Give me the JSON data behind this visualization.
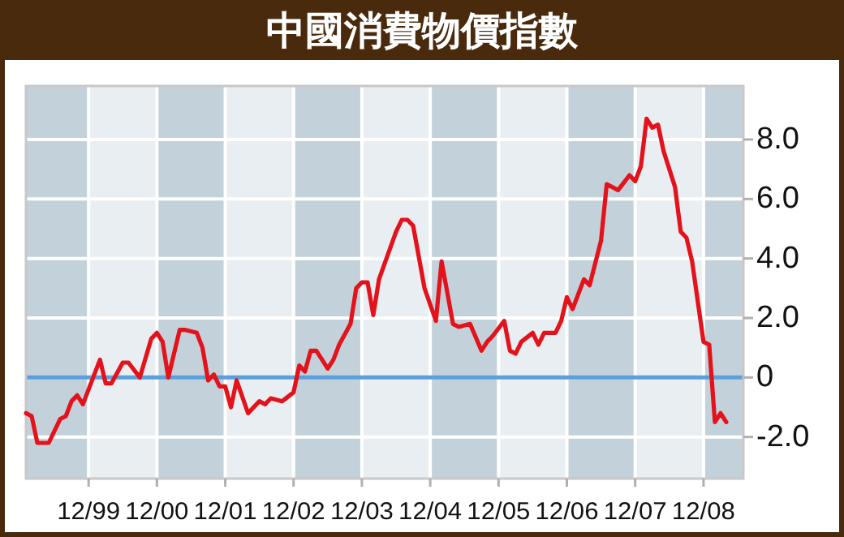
{
  "chart_data": {
    "type": "line",
    "title": "中國消費物價指數",
    "x": [
      "1999-01",
      "1999-02",
      "1999-03",
      "1999-05",
      "1999-07",
      "1999-08",
      "1999-09",
      "1999-10",
      "1999-11",
      "2000-02",
      "2000-03",
      "2000-04",
      "2000-06",
      "2000-07",
      "2000-09",
      "2000-11",
      "2000-12",
      "2001-01",
      "2001-02",
      "2001-04",
      "2001-05",
      "2001-07",
      "2001-08",
      "2001-09",
      "2001-10",
      "2001-11",
      "2001-12",
      "2002-01",
      "2002-02",
      "2002-04",
      "2002-06",
      "2002-07",
      "2002-08",
      "2002-10",
      "2002-12",
      "2003-01",
      "2003-02",
      "2003-03",
      "2003-04",
      "2003-06",
      "2003-07",
      "2003-08",
      "2003-10",
      "2003-11",
      "2003-12",
      "2004-01",
      "2004-02",
      "2004-03",
      "2004-06",
      "2004-07",
      "2004-08",
      "2004-09",
      "2004-11",
      "2005-01",
      "2005-02",
      "2005-04",
      "2005-05",
      "2005-07",
      "2005-09",
      "2005-10",
      "2005-11",
      "2006-01",
      "2006-02",
      "2006-03",
      "2006-04",
      "2006-06",
      "2006-07",
      "2006-08",
      "2006-10",
      "2006-11",
      "2006-12",
      "2007-01",
      "2007-03",
      "2007-04",
      "2007-06",
      "2007-07",
      "2007-09",
      "2007-11",
      "2007-12",
      "2008-01",
      "2008-02",
      "2008-03",
      "2008-04",
      "2008-05",
      "2008-07",
      "2008-08",
      "2008-09",
      "2008-10",
      "2008-12",
      "2009-01",
      "2009-02",
      "2009-03",
      "2009-04"
    ],
    "series": [
      {
        "color": "#e3121b",
        "values": [
          -1.2,
          -1.3,
          -2.2,
          -2.2,
          -1.4,
          -1.3,
          -0.8,
          -0.6,
          -0.9,
          0.6,
          -0.2,
          -0.2,
          0.5,
          0.5,
          0.0,
          1.3,
          1.5,
          1.2,
          0.0,
          1.6,
          1.6,
          1.5,
          1.0,
          -0.1,
          0.1,
          -0.3,
          -0.3,
          -1.0,
          -0.1,
          -1.2,
          -0.8,
          -0.9,
          -0.7,
          -0.8,
          -0.5,
          0.4,
          0.2,
          0.9,
          0.9,
          0.3,
          0.6,
          1.1,
          1.8,
          3.0,
          3.2,
          3.2,
          2.1,
          3.3,
          4.9,
          5.3,
          5.3,
          5.1,
          3.0,
          1.9,
          3.9,
          1.8,
          1.7,
          1.8,
          0.9,
          1.2,
          1.4,
          1.9,
          0.9,
          0.8,
          1.2,
          1.5,
          1.1,
          1.5,
          1.5,
          1.9,
          2.7,
          2.3,
          3.3,
          3.1,
          4.6,
          6.5,
          6.3,
          6.8,
          6.6,
          7.1,
          8.7,
          8.4,
          8.5,
          7.6,
          6.4,
          4.9,
          4.7,
          3.9,
          1.2,
          1.1,
          -1.5,
          -1.2,
          -1.5
        ]
      }
    ],
    "xlim": [
      "1999-01",
      "2009-07"
    ],
    "xticks": [
      {
        "value": "1999-12",
        "label": "12/99"
      },
      {
        "value": "2000-12",
        "label": "12/00"
      },
      {
        "value": "2001-12",
        "label": "12/01"
      },
      {
        "value": "2002-12",
        "label": "12/02"
      },
      {
        "value": "2003-12",
        "label": "12/03"
      },
      {
        "value": "2004-12",
        "label": "12/04"
      },
      {
        "value": "2005-12",
        "label": "12/05"
      },
      {
        "value": "2006-12",
        "label": "12/06"
      },
      {
        "value": "2007-12",
        "label": "12/07"
      },
      {
        "value": "2008-12",
        "label": "12/08"
      }
    ],
    "ylim": [
      -3.4,
      9.8
    ],
    "yticks": [
      {
        "value": -2,
        "label": "-2.0"
      },
      0,
      {
        "value": 2,
        "label": "2.0"
      },
      {
        "value": 4,
        "label": "4.0"
      },
      {
        "value": 6,
        "label": "6.0"
      },
      {
        "value": 8,
        "label": "8.0"
      }
    ],
    "ref_lines": [
      {
        "axis": "y",
        "value": 0,
        "color": "#5b9fdc"
      }
    ],
    "bands": [
      {
        "axis": "x",
        "from": "1999-01",
        "to": "1999-12",
        "color": "#c3d2da"
      },
      {
        "axis": "x",
        "from": "2000-12",
        "to": "2001-12",
        "color": "#c3d2da"
      },
      {
        "axis": "x",
        "from": "2002-12",
        "to": "2003-12",
        "color": "#c3d2da"
      },
      {
        "axis": "x",
        "from": "2004-12",
        "to": "2005-12",
        "color": "#c3d2da"
      },
      {
        "axis": "x",
        "from": "2006-12",
        "to": "2007-12",
        "color": "#c3d2da"
      },
      {
        "axis": "x",
        "from": "2008-12",
        "to": "2009-07",
        "color": "#c3d2da"
      }
    ],
    "grid": true,
    "line_style": "solid"
  }
}
